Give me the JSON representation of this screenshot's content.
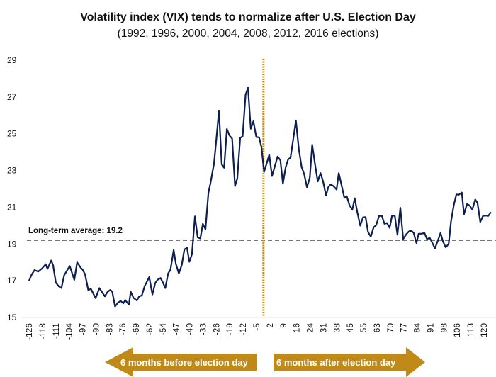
{
  "chart_data": {
    "type": "line",
    "title": "Volatility index (VIX) tends to normalize after U.S. Election Day",
    "subtitle": "(1992, 1996, 2000, 2004, 2008, 2012, 2016 elections)",
    "xlabel": "",
    "ylabel": "",
    "ylim": [
      15,
      29
    ],
    "yticks": [
      "15",
      "17",
      "19",
      "21",
      "23",
      "25",
      "27",
      "29"
    ],
    "xticks": [
      "-126",
      "-118",
      "-111",
      "-104",
      "-97",
      "-90",
      "-83",
      "-76",
      "-69",
      "-62",
      "-54",
      "-47",
      "-40",
      "-33",
      "-26",
      "-19",
      "-12",
      "-5",
      "2",
      "9",
      "16",
      "24",
      "31",
      "38",
      "45",
      "55",
      "63",
      "70",
      "77",
      "84",
      "91",
      "98",
      "106",
      "113",
      "120"
    ],
    "grid": false,
    "line_color": "#0d1f4f",
    "reference_line": {
      "value": 19.2,
      "label": "Long-term average: 19.2",
      "color": "#666666",
      "style": "dashed"
    },
    "event_line": {
      "x": 0,
      "color": "#c8900f",
      "style": "dotted"
    },
    "series": [
      {
        "points": [
          [
            -126,
            17.0
          ],
          [
            -124.5,
            17.35
          ],
          [
            -123,
            17.58
          ],
          [
            -121,
            17.5
          ],
          [
            -119,
            17.67
          ],
          [
            -117,
            17.9
          ],
          [
            -116,
            17.65
          ],
          [
            -114,
            18.1
          ],
          [
            -113,
            17.85
          ],
          [
            -111.5,
            16.9
          ],
          [
            -110,
            16.7
          ],
          [
            -108.5,
            16.6
          ],
          [
            -107,
            17.3
          ],
          [
            -104,
            17.8
          ],
          [
            -101.5,
            17.05
          ],
          [
            -100,
            18.0
          ],
          [
            -98,
            17.7
          ],
          [
            -97,
            17.6
          ],
          [
            -95.7,
            17.35
          ],
          [
            -94,
            16.5
          ],
          [
            -92.5,
            16.55
          ],
          [
            -91,
            16.25
          ],
          [
            -90,
            16.05
          ],
          [
            -88,
            16.6
          ],
          [
            -87,
            16.45
          ],
          [
            -85,
            16.15
          ],
          [
            -83.5,
            16.4
          ],
          [
            -82,
            16.5
          ],
          [
            -81,
            16.4
          ],
          [
            -79.5,
            15.6
          ],
          [
            -78,
            15.8
          ],
          [
            -76.5,
            15.9
          ],
          [
            -75,
            15.77
          ],
          [
            -74,
            15.95
          ],
          [
            -72,
            15.7
          ],
          [
            -71,
            16.4
          ],
          [
            -69.5,
            16.06
          ],
          [
            -67.7,
            15.93
          ],
          [
            -66.4,
            16.15
          ],
          [
            -65,
            16.2
          ],
          [
            -63.5,
            16.7
          ],
          [
            -61,
            17.2
          ],
          [
            -59.3,
            16.25
          ],
          [
            -57.8,
            16.87
          ],
          [
            -56.5,
            17.05
          ],
          [
            -54.9,
            17.15
          ],
          [
            -53.6,
            16.9
          ],
          [
            -52.3,
            16.6
          ],
          [
            -50.8,
            17.4
          ],
          [
            -49.5,
            17.6
          ],
          [
            -47.8,
            18.67
          ],
          [
            -46.6,
            17.92
          ],
          [
            -45,
            17.4
          ],
          [
            -43.4,
            17.86
          ],
          [
            -42,
            18.7
          ],
          [
            -40.6,
            18.8
          ],
          [
            -39.3,
            18.03
          ],
          [
            -37.9,
            18.44
          ],
          [
            -36.3,
            20.5
          ],
          [
            -34.8,
            19.36
          ],
          [
            -33.4,
            19.3
          ],
          [
            -32,
            20.1
          ],
          [
            -30.6,
            19.8
          ],
          [
            -29,
            21.77
          ],
          [
            -27.7,
            22.4
          ],
          [
            -26,
            23.37
          ],
          [
            -24.8,
            24.6
          ],
          [
            -23.3,
            26.26
          ],
          [
            -21.8,
            23.33
          ],
          [
            -20.5,
            23.15
          ],
          [
            -19,
            25.26
          ],
          [
            -17.6,
            24.9
          ],
          [
            -16.2,
            24.74
          ],
          [
            -14.6,
            22.15
          ],
          [
            -13.4,
            22.56
          ],
          [
            -11.8,
            24.78
          ],
          [
            -10.5,
            24.85
          ],
          [
            -8.9,
            27.13
          ],
          [
            -7.6,
            27.5
          ],
          [
            -6.1,
            25.27
          ],
          [
            -4.7,
            25.68
          ],
          [
            -3.1,
            24.82
          ],
          [
            -1.6,
            24.8
          ],
          [
            -0.3,
            24.27
          ],
          [
            1.1,
            22.92
          ],
          [
            3.9,
            23.85
          ],
          [
            5.4,
            22.7
          ],
          [
            8.4,
            23.76
          ],
          [
            9.9,
            23.56
          ],
          [
            11.3,
            22.28
          ],
          [
            12.8,
            23.18
          ],
          [
            14.1,
            23.6
          ],
          [
            15.4,
            23.7
          ],
          [
            16.9,
            24.72
          ],
          [
            18.3,
            25.72
          ],
          [
            19.9,
            24.14
          ],
          [
            21.4,
            23.18
          ],
          [
            22.8,
            22.8
          ],
          [
            24.3,
            22.09
          ],
          [
            25.8,
            22.6
          ],
          [
            27.1,
            24.4
          ],
          [
            28.5,
            23.44
          ],
          [
            30.1,
            22.4
          ],
          [
            31.6,
            22.86
          ],
          [
            33,
            22.4
          ],
          [
            34.6,
            21.64
          ],
          [
            35.8,
            22.09
          ],
          [
            37.1,
            22.24
          ],
          [
            38.6,
            22.15
          ],
          [
            40.3,
            21.96
          ],
          [
            41.5,
            22.86
          ],
          [
            43.1,
            22.15
          ],
          [
            44.5,
            21.51
          ],
          [
            45.8,
            21.6
          ],
          [
            47.3,
            21.1
          ],
          [
            48.8,
            20.87
          ],
          [
            50.1,
            21.49
          ],
          [
            51.5,
            20.74
          ],
          [
            53.1,
            20.0
          ],
          [
            54.6,
            20.45
          ],
          [
            56,
            20.46
          ],
          [
            57.3,
            19.65
          ],
          [
            58.8,
            19.4
          ],
          [
            60.3,
            19.9
          ],
          [
            61.7,
            20.03
          ],
          [
            63.3,
            20.53
          ],
          [
            64.8,
            20.53
          ],
          [
            66.2,
            20.1
          ],
          [
            67.5,
            20.14
          ],
          [
            69,
            19.88
          ],
          [
            70.3,
            20.55
          ],
          [
            71.8,
            20.53
          ],
          [
            73.2,
            19.5
          ],
          [
            74.8,
            20.97
          ],
          [
            76.3,
            19.27
          ],
          [
            78,
            19.53
          ],
          [
            79.5,
            19.69
          ],
          [
            80.8,
            19.72
          ],
          [
            82,
            19.6
          ],
          [
            83.5,
            19.05
          ],
          [
            84.7,
            19.56
          ],
          [
            86.3,
            19.56
          ],
          [
            87.8,
            19.6
          ],
          [
            89.2,
            19.27
          ],
          [
            90.7,
            19.33
          ],
          [
            92,
            19.08
          ],
          [
            93.5,
            18.76
          ],
          [
            94.9,
            19.14
          ],
          [
            96.5,
            19.6
          ],
          [
            97.8,
            19.14
          ],
          [
            99.3,
            18.82
          ],
          [
            100.9,
            19.0
          ],
          [
            102.2,
            20.23
          ],
          [
            103.7,
            21.13
          ],
          [
            105.1,
            21.7
          ],
          [
            106.4,
            21.68
          ],
          [
            108,
            21.8
          ],
          [
            109.2,
            20.62
          ],
          [
            110.8,
            21.17
          ],
          [
            112.2,
            21.1
          ],
          [
            113.7,
            20.87
          ],
          [
            115.3,
            21.42
          ],
          [
            116.5,
            21.23
          ],
          [
            118,
            20.2
          ],
          [
            119.5,
            20.53
          ],
          [
            121,
            20.55
          ],
          [
            122.4,
            20.53
          ],
          [
            123.7,
            20.74
          ]
        ]
      }
    ],
    "annotations": {
      "before_arrow": "6 months before election day",
      "after_arrow": "6 months after election day",
      "arrow_color": "#bf8a17"
    }
  }
}
